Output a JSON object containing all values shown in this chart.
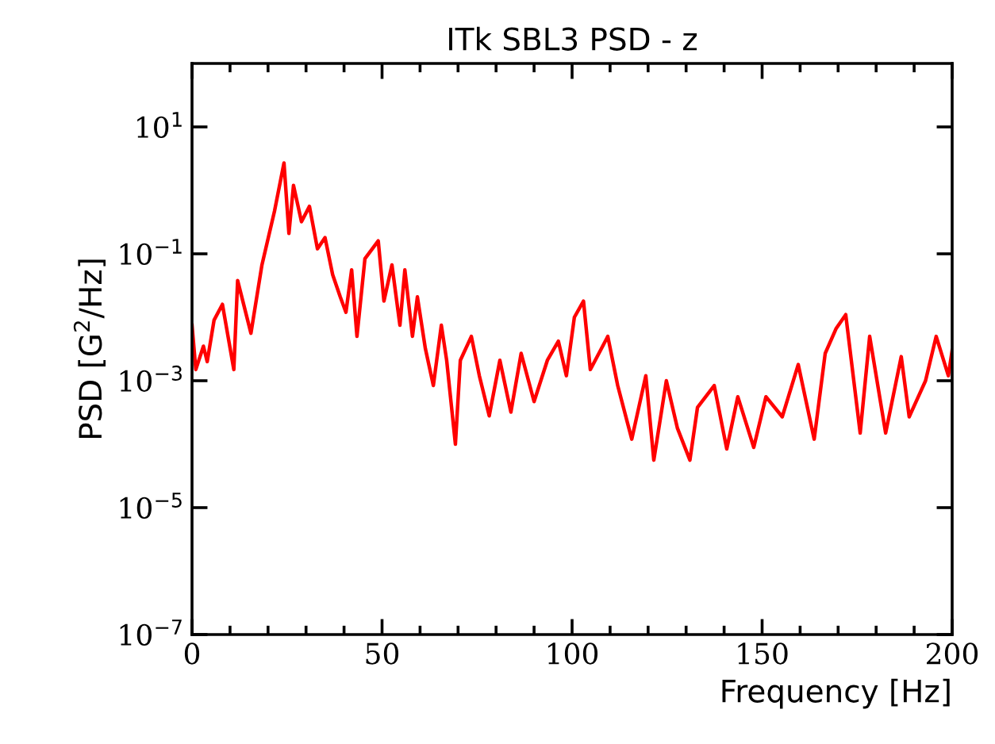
{
  "chart_data": {
    "type": "line",
    "title": "ITk SBL3 PSD - z",
    "xlabel": "Frequency [Hz]",
    "ylabel": "PSD [G$^{2}$/Hz]",
    "log": "y",
    "xlim": [
      0,
      200
    ],
    "xticks": [
      0,
      50,
      100,
      150,
      200
    ],
    "ylim": [
      1e-07,
      100
    ],
    "yticks": [
      {
        "value": 1e-07,
        "label": "10$^{−7}$"
      },
      {
        "value": 1e-05,
        "label": "10$^{−5}$"
      },
      {
        "value": 0.001,
        "label": "10$^{−3}$"
      },
      {
        "value": 0.1,
        "label": "10$^{−1}$"
      },
      {
        "value": 10,
        "label": "10$^{1}$"
      }
    ],
    "grid": false,
    "legend": false,
    "marker": "none",
    "line_style": "solid",
    "series": [
      {
        "color": "#ff0000",
        "x": [
          0,
          1,
          3,
          4,
          5.8,
          8,
          11,
          12,
          15.5,
          18.4,
          21.7,
          24.2,
          25.5,
          26.7,
          28.8,
          30.9,
          33,
          35,
          37,
          39,
          40.5,
          42,
          43.4,
          45.5,
          49,
          50.5,
          52.6,
          54.7,
          56,
          58,
          59.3,
          61.4,
          63.5,
          65.6,
          67,
          69.3,
          70.6,
          73.5,
          75.6,
          78.2,
          81,
          83.9,
          86.6,
          90,
          93.5,
          96.4,
          98.5,
          100.6,
          103,
          104.8,
          109.4,
          112,
          115.7,
          119.4,
          121.5,
          124.8,
          127.7,
          131,
          133,
          137.4,
          140.7,
          143.6,
          147.8,
          151,
          155.3,
          159.5,
          163.7,
          166.6,
          169.5,
          172,
          175.8,
          178.3,
          182.5,
          186.6,
          188.7,
          193,
          195.8,
          199,
          200
        ],
        "values": [
          0.0075,
          0.0015,
          0.0035,
          0.002,
          0.009,
          0.016,
          0.0015,
          0.038,
          0.0056,
          0.067,
          0.47,
          2.7,
          0.21,
          1.2,
          0.32,
          0.56,
          0.12,
          0.18,
          0.047,
          0.021,
          0.012,
          0.056,
          0.005,
          0.084,
          0.16,
          0.018,
          0.067,
          0.0075,
          0.056,
          0.005,
          0.021,
          0.0032,
          0.00084,
          0.0075,
          0.0021,
          0.0001,
          0.0021,
          0.005,
          0.0012,
          0.00028,
          0.0021,
          0.00032,
          0.0027,
          0.00047,
          0.0021,
          0.0042,
          0.0012,
          0.01,
          0.018,
          0.0015,
          0.005,
          0.00084,
          0.00012,
          0.0012,
          5.6e-05,
          0.001,
          0.00018,
          5.6e-05,
          0.00038,
          0.00084,
          8.4e-05,
          0.00056,
          8.9e-05,
          0.00056,
          0.00027,
          0.0018,
          0.00012,
          0.0027,
          0.0067,
          0.011,
          0.00015,
          0.005,
          0.00015,
          0.0024,
          0.00027,
          0.001,
          0.005,
          0.0012,
          0.003
        ]
      }
    ]
  }
}
